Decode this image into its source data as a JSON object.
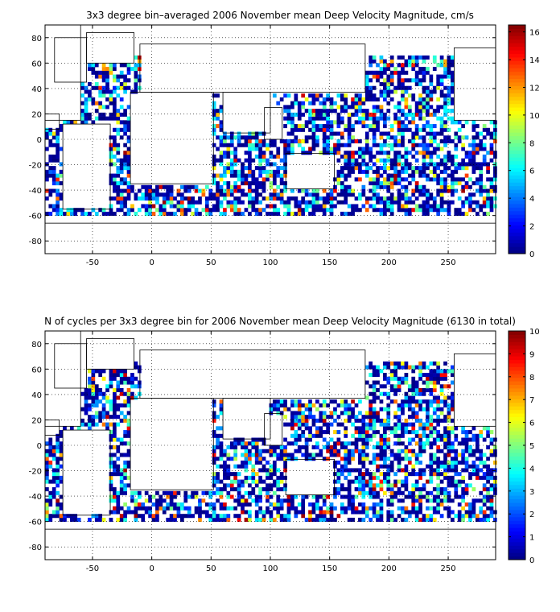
{
  "chart_data": [
    {
      "type": "heatmap",
      "title": "3x3 degree bin–averaged 2006 November mean Deep Velocity Magnitude, cm/s",
      "xlabel": "",
      "ylabel": "",
      "xlim": [
        -90,
        290
      ],
      "ylim": [
        -90,
        90
      ],
      "x_ticks": [
        -50,
        0,
        50,
        100,
        150,
        200,
        250
      ],
      "y_ticks": [
        80,
        60,
        40,
        20,
        0,
        -20,
        -40,
        -60,
        -80
      ],
      "grid": true,
      "colorbar": {
        "min": 0,
        "max": 16.5,
        "ticks": [
          0,
          2,
          4,
          6,
          8,
          10,
          12,
          14,
          16
        ]
      },
      "cell_deg": 3,
      "typical_value": 3
    },
    {
      "type": "heatmap",
      "title": "N of cycles per 3x3 degree bin for 2006 November mean Deep Velocity Magnitude (6130 in total)",
      "xlabel": "",
      "ylabel": "",
      "xlim": [
        -90,
        290
      ],
      "ylim": [
        -90,
        90
      ],
      "x_ticks": [
        -50,
        0,
        50,
        100,
        150,
        200,
        250
      ],
      "y_ticks": [
        80,
        60,
        40,
        20,
        0,
        -20,
        -40,
        -60,
        -80
      ],
      "grid": true,
      "colorbar": {
        "min": 0,
        "max": 10,
        "ticks": [
          0,
          1,
          2,
          3,
          4,
          5,
          6,
          7,
          8,
          9,
          10
        ]
      },
      "cell_deg": 3,
      "typical_value": 3
    }
  ]
}
